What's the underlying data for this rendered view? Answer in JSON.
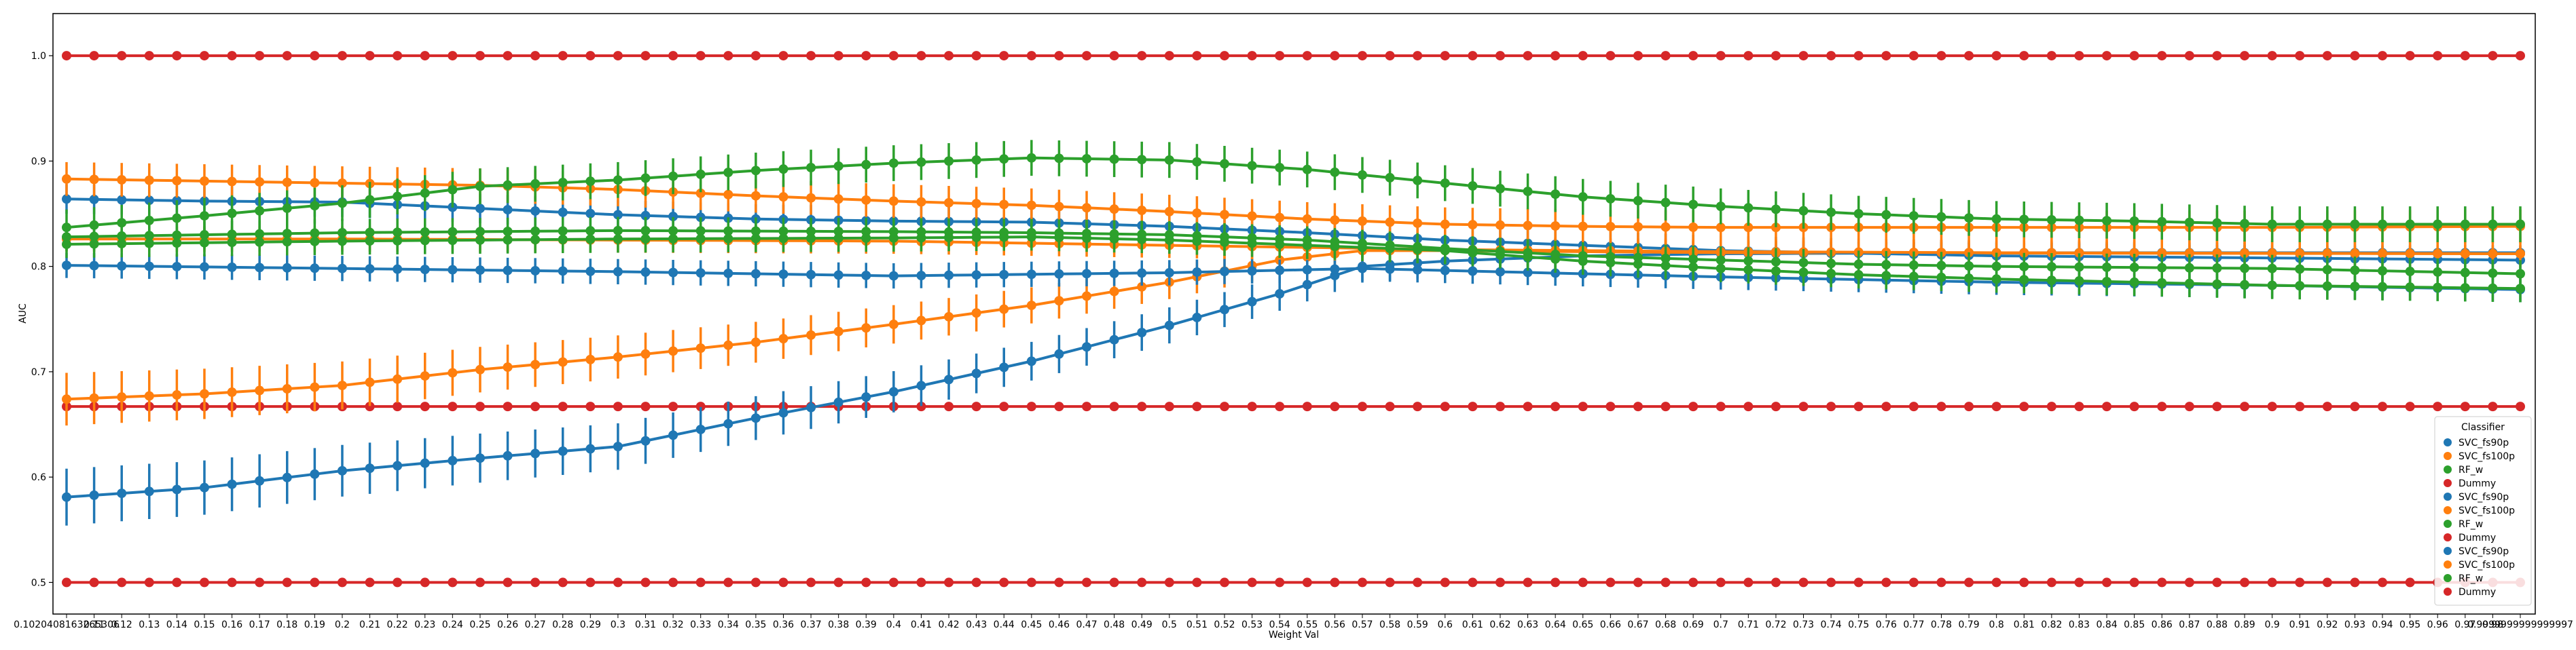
{
  "chart_data": {
    "type": "line",
    "xlabel": "Weight Val",
    "ylabel": "AUC",
    "ylim": [
      0.47,
      1.04
    ],
    "y_ticks": [
      "0.5",
      "0.6",
      "0.7",
      "0.8",
      "0.9",
      "1.0"
    ],
    "x_tick_labels": [
      "0.1020408163265306",
      "0.11",
      "0.12",
      "0.13",
      "0.14",
      "0.15",
      "0.16",
      "0.17",
      "0.18",
      "0.19",
      "0.2",
      "0.21",
      "0.22",
      "0.23",
      "0.24",
      "0.25",
      "0.26",
      "0.27",
      "0.28",
      "0.29",
      "0.3",
      "0.31",
      "0.32",
      "0.33",
      "0.34",
      "0.35",
      "0.36",
      "0.37",
      "0.38",
      "0.39",
      "0.4",
      "0.41",
      "0.42",
      "0.43",
      "0.44",
      "0.45",
      "0.46",
      "0.47",
      "0.48",
      "0.49",
      "0.5",
      "0.51",
      "0.52",
      "0.53",
      "0.54",
      "0.55",
      "0.56",
      "0.57",
      "0.58",
      "0.59",
      "0.6",
      "0.61",
      "0.62",
      "0.63",
      "0.64",
      "0.65",
      "0.66",
      "0.67",
      "0.68",
      "0.69",
      "0.7",
      "0.71",
      "0.72",
      "0.73",
      "0.74",
      "0.75",
      "0.76",
      "0.77",
      "0.78",
      "0.79",
      "0.8",
      "0.81",
      "0.82",
      "0.83",
      "0.84",
      "0.85",
      "0.86",
      "0.87",
      "0.88",
      "0.89",
      "0.9",
      "0.91",
      "0.92",
      "0.93",
      "0.94",
      "0.95",
      "0.96",
      "0.97",
      "0.98",
      "0.9999999999999997"
    ],
    "legend": {
      "title": "Classifier",
      "position": "lower-right",
      "entries": [
        {
          "name": "SVC_fs90p",
          "color": "#1f77b4"
        },
        {
          "name": "SVC_fs100p",
          "color": "#ff7f0e"
        },
        {
          "name": "RF_w",
          "color": "#2ca02c"
        },
        {
          "name": "Dummy",
          "color": "#d62728"
        },
        {
          "name": "SVC_fs90p",
          "color": "#1f77b4"
        },
        {
          "name": "SVC_fs100p",
          "color": "#ff7f0e"
        },
        {
          "name": "RF_w",
          "color": "#2ca02c"
        },
        {
          "name": "Dummy",
          "color": "#d62728"
        },
        {
          "name": "SVC_fs90p",
          "color": "#1f77b4"
        },
        {
          "name": "SVC_fs100p",
          "color": "#ff7f0e"
        },
        {
          "name": "RF_w",
          "color": "#2ca02c"
        },
        {
          "name": "Dummy",
          "color": "#d62728"
        }
      ]
    },
    "series": [
      {
        "color": "#d62728",
        "err": 0,
        "knots": [
          [
            0,
            1.0
          ],
          [
            89,
            1.0
          ]
        ]
      },
      {
        "color": "#d62728",
        "err": 0,
        "knots": [
          [
            0,
            0.5
          ],
          [
            89,
            0.5
          ]
        ]
      },
      {
        "color": "#d62728",
        "err": 0,
        "knots": [
          [
            0,
            0.667
          ],
          [
            89,
            0.667
          ]
        ]
      },
      {
        "color": "#1f77b4",
        "err_start": 0.027,
        "err_end": 0.005,
        "knots": [
          [
            0,
            0.581
          ],
          [
            5,
            0.59
          ],
          [
            10,
            0.606
          ],
          [
            15,
            0.618
          ],
          [
            20,
            0.629
          ],
          [
            25,
            0.656
          ],
          [
            30,
            0.681
          ],
          [
            35,
            0.71
          ],
          [
            40,
            0.744
          ],
          [
            44,
            0.774
          ],
          [
            47,
            0.8
          ],
          [
            50,
            0.805
          ],
          [
            55,
            0.81
          ],
          [
            60,
            0.812
          ],
          [
            70,
            0.813
          ],
          [
            89,
            0.813
          ]
        ]
      },
      {
        "color": "#ff7f0e",
        "err_start": 0.025,
        "err_end": 0.005,
        "knots": [
          [
            0,
            0.674
          ],
          [
            5,
            0.679
          ],
          [
            10,
            0.687
          ],
          [
            15,
            0.702
          ],
          [
            20,
            0.714
          ],
          [
            25,
            0.728
          ],
          [
            30,
            0.745
          ],
          [
            35,
            0.763
          ],
          [
            40,
            0.785
          ],
          [
            44,
            0.806
          ],
          [
            47,
            0.815
          ],
          [
            50,
            0.815
          ],
          [
            60,
            0.813
          ],
          [
            89,
            0.812
          ]
        ]
      },
      {
        "color": "#1f77b4",
        "err": 0.014,
        "knots": [
          [
            0,
            0.864
          ],
          [
            5,
            0.862
          ],
          [
            10,
            0.861
          ],
          [
            15,
            0.855
          ],
          [
            20,
            0.849
          ],
          [
            25,
            0.845
          ],
          [
            30,
            0.843
          ],
          [
            35,
            0.842
          ],
          [
            40,
            0.838
          ],
          [
            45,
            0.832
          ],
          [
            50,
            0.825
          ],
          [
            55,
            0.82
          ],
          [
            60,
            0.815
          ],
          [
            70,
            0.81
          ],
          [
            80,
            0.808
          ],
          [
            89,
            0.806
          ]
        ]
      },
      {
        "color": "#1f77b4",
        "err": 0.012,
        "knots": [
          [
            0,
            0.801
          ],
          [
            10,
            0.798
          ],
          [
            20,
            0.795
          ],
          [
            30,
            0.791
          ],
          [
            40,
            0.794
          ],
          [
            47,
            0.798
          ],
          [
            55,
            0.793
          ],
          [
            60,
            0.79
          ],
          [
            70,
            0.785
          ],
          [
            80,
            0.782
          ],
          [
            89,
            0.778
          ]
        ]
      },
      {
        "color": "#ff7f0e",
        "err": 0.016,
        "knots": [
          [
            0,
            0.883
          ],
          [
            10,
            0.879
          ],
          [
            15,
            0.877
          ],
          [
            20,
            0.873
          ],
          [
            25,
            0.867
          ],
          [
            30,
            0.862
          ],
          [
            35,
            0.858
          ],
          [
            40,
            0.852
          ],
          [
            45,
            0.845
          ],
          [
            50,
            0.84
          ],
          [
            55,
            0.838
          ],
          [
            60,
            0.837
          ],
          [
            70,
            0.837
          ],
          [
            80,
            0.837
          ],
          [
            89,
            0.838
          ]
        ]
      },
      {
        "color": "#ff7f0e",
        "err": 0.012,
        "knots": [
          [
            0,
            0.826
          ],
          [
            10,
            0.826
          ],
          [
            20,
            0.825
          ],
          [
            30,
            0.824
          ],
          [
            35,
            0.822
          ],
          [
            40,
            0.82
          ],
          [
            50,
            0.816
          ],
          [
            60,
            0.814
          ],
          [
            70,
            0.813
          ],
          [
            89,
            0.812
          ]
        ]
      },
      {
        "color": "#2ca02c",
        "err": 0.017,
        "knots": [
          [
            0,
            0.837
          ],
          [
            5,
            0.848
          ],
          [
            10,
            0.86
          ],
          [
            15,
            0.876
          ],
          [
            20,
            0.882
          ],
          [
            25,
            0.891
          ],
          [
            30,
            0.898
          ],
          [
            35,
            0.903
          ],
          [
            40,
            0.901
          ],
          [
            45,
            0.892
          ],
          [
            50,
            0.879
          ],
          [
            55,
            0.866
          ],
          [
            60,
            0.857
          ],
          [
            65,
            0.85
          ],
          [
            70,
            0.845
          ],
          [
            75,
            0.843
          ],
          [
            80,
            0.84
          ],
          [
            89,
            0.84
          ]
        ]
      },
      {
        "color": "#2ca02c",
        "err": 0.013,
        "knots": [
          [
            0,
            0.828
          ],
          [
            10,
            0.832
          ],
          [
            20,
            0.834
          ],
          [
            30,
            0.833
          ],
          [
            35,
            0.832
          ],
          [
            40,
            0.83
          ],
          [
            45,
            0.825
          ],
          [
            50,
            0.817
          ],
          [
            55,
            0.81
          ],
          [
            60,
            0.806
          ],
          [
            65,
            0.802
          ],
          [
            70,
            0.8
          ],
          [
            80,
            0.798
          ],
          [
            89,
            0.793
          ]
        ]
      },
      {
        "color": "#2ca02c",
        "err": 0.013,
        "knots": [
          [
            0,
            0.821
          ],
          [
            10,
            0.824
          ],
          [
            20,
            0.826
          ],
          [
            30,
            0.827
          ],
          [
            35,
            0.828
          ],
          [
            40,
            0.825
          ],
          [
            50,
            0.815
          ],
          [
            55,
            0.805
          ],
          [
            60,
            0.798
          ],
          [
            65,
            0.792
          ],
          [
            70,
            0.788
          ],
          [
            80,
            0.782
          ],
          [
            89,
            0.779
          ]
        ]
      }
    ]
  }
}
